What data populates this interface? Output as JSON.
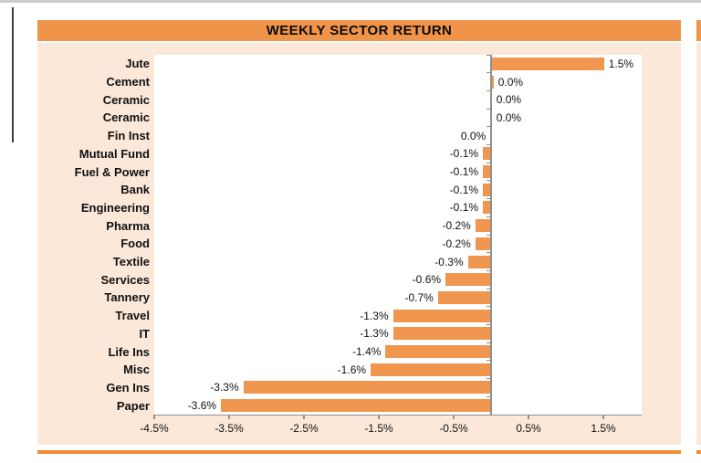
{
  "chart_data": {
    "type": "bar",
    "orientation": "horizontal",
    "title": "WEEKLY SECTOR RETURN",
    "categories": [
      "Jute",
      "Cement",
      "Ceramic",
      "Ceramic",
      "Fin Inst",
      "Mutual Fund",
      "Fuel & Power",
      "Bank",
      "Engineering",
      "Pharma",
      "Food",
      "Textile",
      "Services",
      "Tannery",
      "Travel",
      "IT",
      "Life Ins",
      "Misc",
      "Gen Ins",
      "Paper"
    ],
    "values": [
      1.5,
      0.0,
      0.0,
      0.0,
      0.0,
      -0.1,
      -0.1,
      -0.1,
      -0.1,
      -0.2,
      -0.2,
      -0.3,
      -0.6,
      -0.7,
      -1.3,
      -1.3,
      -1.4,
      -1.6,
      -3.3,
      -3.6
    ],
    "value_labels": [
      "1.5%",
      "0.0%",
      "0.0%",
      "0.0%",
      "0.0%",
      "-0.1%",
      "-0.1%",
      "-0.1%",
      "-0.1%",
      "-0.2%",
      "-0.2%",
      "-0.3%",
      "-0.6%",
      "-0.7%",
      "-1.3%",
      "-1.3%",
      "-1.4%",
      "-1.6%",
      "-3.3%",
      "-3.6%"
    ],
    "label_side": [
      "right",
      "right",
      "right",
      "right",
      "left",
      "left",
      "left",
      "left",
      "left",
      "left",
      "left",
      "left",
      "left",
      "left",
      "left",
      "left",
      "left",
      "left",
      "left",
      "left"
    ],
    "sliver_bars": [
      false,
      true,
      false,
      false,
      false,
      false,
      false,
      false,
      false,
      false,
      false,
      false,
      false,
      false,
      false,
      false,
      false,
      false,
      false,
      false
    ],
    "x_tick_labels": [
      "-4.5%",
      "-3.5%",
      "-2.5%",
      "-1.5%",
      "-0.5%",
      "0.5%",
      "1.5%"
    ],
    "x_tick_values": [
      -4.5,
      -3.5,
      -2.5,
      -1.5,
      -0.5,
      0.5,
      1.5
    ],
    "xlim": [
      -4.5,
      2.0
    ],
    "grid": false,
    "legend": "none",
    "colors": {
      "bar": "#f0964f",
      "header_bg": "#f0944a",
      "panel_bg": "#fbe8d9",
      "divider": "#f28b33",
      "axis": "#909090",
      "text": "#111111"
    }
  }
}
